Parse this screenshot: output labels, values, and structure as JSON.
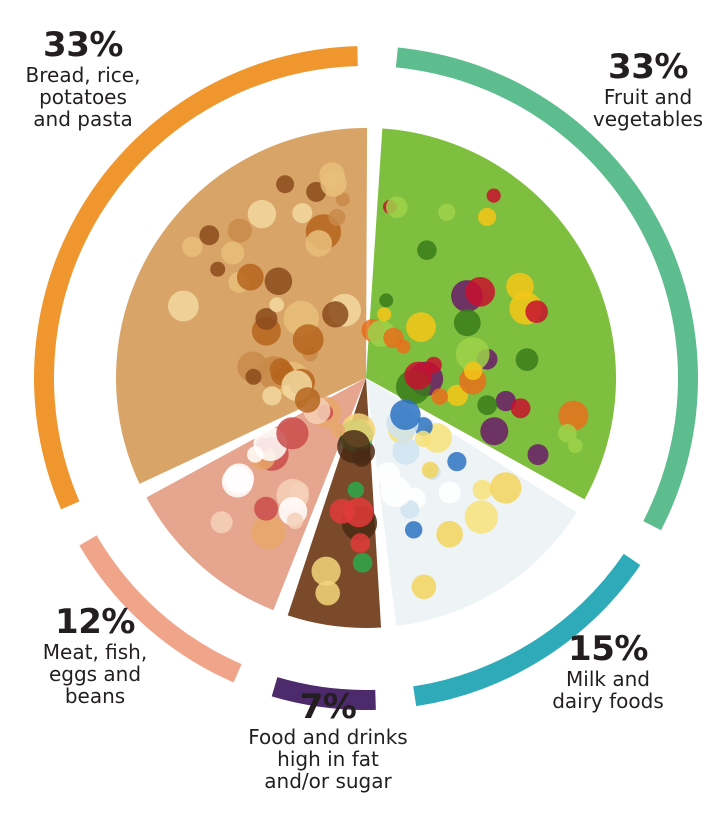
{
  "chart_data": {
    "type": "pie",
    "categories": [
      "Fruit and vegetables",
      "Milk and dairy foods",
      "Food and drinks high in fat and/or sugar",
      "Meat, fish, eggs and beans",
      "Bread, rice, potatoes and pasta"
    ],
    "values": [
      33,
      15,
      7,
      12,
      33
    ],
    "slices": [
      {
        "id": "fruit-veg",
        "value": 33,
        "pct_label": "33%",
        "lines": [
          "Fruit and",
          "vegetables"
        ],
        "ring_color": "#5dbd8f",
        "fill_color": "#7fbf3f"
      },
      {
        "id": "dairy",
        "value": 15,
        "pct_label": "15%",
        "lines": [
          "Milk and",
          "dairy foods"
        ],
        "ring_color": "#2eaab8",
        "fill_color": "#eef3f6"
      },
      {
        "id": "fat-sugar",
        "value": 7,
        "pct_label": "7%",
        "lines": [
          "Food and drinks",
          "high in fat",
          "and/or sugar"
        ],
        "ring_color": "#4d2a6b",
        "fill_color": "#7a4a2a"
      },
      {
        "id": "meat-fish",
        "value": 12,
        "pct_label": "12%",
        "lines": [
          "Meat, fish,",
          "eggs and",
          "beans"
        ],
        "ring_color": "#f0a58a",
        "fill_color": "#e6a58f"
      },
      {
        "id": "starchy",
        "value": 33,
        "pct_label": "33%",
        "lines": [
          "Bread, rice,",
          "potatoes",
          "and pasta"
        ],
        "ring_color": "#f0962e",
        "fill_color": "#d9a468"
      }
    ],
    "start_angle_deg": 2,
    "title": "",
    "legend": "none"
  }
}
